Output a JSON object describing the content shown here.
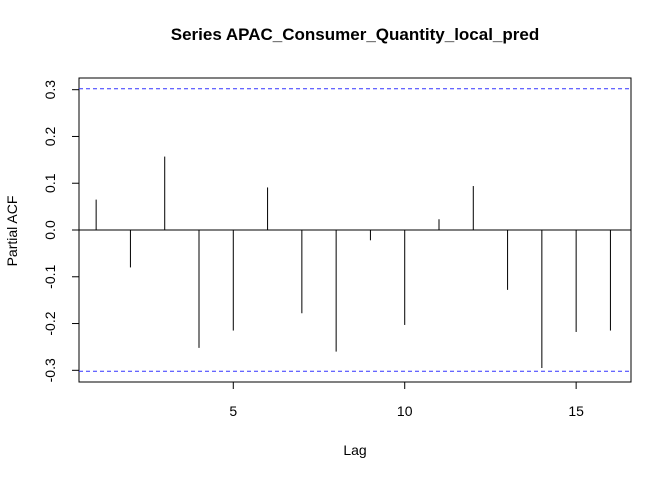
{
  "chart_data": {
    "type": "bar",
    "title": "Series  APAC_Consumer_Quantity_local_pred",
    "xlabel": "Lag",
    "ylabel": "Partial ACF",
    "xlim": [
      0.5,
      16.6
    ],
    "ylim": [
      -0.325,
      0.325
    ],
    "xticks": [
      5,
      10,
      15
    ],
    "yticks": [
      -0.3,
      -0.2,
      -0.1,
      0.0,
      0.1,
      0.2,
      0.3
    ],
    "ytick_labels": [
      "-0.3",
      "-0.2",
      "-0.1",
      "0.0",
      "0.1",
      "0.2",
      "0.3"
    ],
    "lags": [
      1,
      2,
      3,
      4,
      5,
      6,
      7,
      8,
      9,
      10,
      11,
      12,
      13,
      14,
      15,
      16
    ],
    "values": [
      0.065,
      -0.08,
      0.157,
      -0.252,
      -0.215,
      0.091,
      -0.178,
      -0.26,
      -0.022,
      -0.203,
      0.023,
      0.094,
      -0.128,
      -0.295,
      -0.218,
      -0.215
    ],
    "confidence_band": 0.302,
    "colors": {
      "bars": "#000000",
      "confidence": "#3333ff",
      "zero_line": "#000000"
    },
    "grid": false
  }
}
